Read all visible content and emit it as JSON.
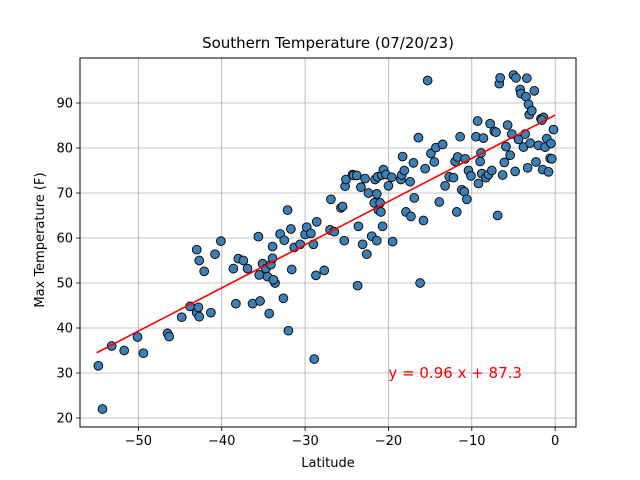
{
  "chart_data": {
    "type": "scatter",
    "title": "Southern Temperature (07/20/23)",
    "xlabel": "Latitude",
    "ylabel": "Max Temperature (F)",
    "xlim": [
      -57,
      2.5
    ],
    "ylim": [
      18,
      100
    ],
    "xticks": [
      -50,
      -40,
      -30,
      -20,
      -10,
      0
    ],
    "yticks": [
      20,
      30,
      40,
      50,
      60,
      70,
      80,
      90
    ],
    "grid": true,
    "colors": {
      "marker_fill": "#3b7fb4",
      "marker_edge": "#000000",
      "regression": "#ff0000"
    },
    "regression": {
      "slope": 0.96,
      "intercept": 87.3,
      "x_start": -55.0,
      "x_end": 0,
      "equation": "y = 0.96 x + 87.3",
      "label_x": -20,
      "label_y": 30
    },
    "points": [
      [
        -54.8,
        31.6
      ],
      [
        -54.3,
        22.0
      ],
      [
        -53.2,
        36.0
      ],
      [
        -51.7,
        35.0
      ],
      [
        -50.1,
        38.0
      ],
      [
        -49.4,
        34.4
      ],
      [
        -46.5,
        38.8
      ],
      [
        -46.3,
        38.1
      ],
      [
        -44.8,
        42.4
      ],
      [
        -43.8,
        44.8
      ],
      [
        -43.0,
        43.4
      ],
      [
        -42.7,
        42.5
      ],
      [
        -42.7,
        55.0
      ],
      [
        -43.0,
        57.4
      ],
      [
        -42.8,
        44.6
      ],
      [
        -42.1,
        52.6
      ],
      [
        -41.3,
        43.4
      ],
      [
        -40.8,
        56.4
      ],
      [
        -40.1,
        59.3
      ],
      [
        -38.6,
        53.2
      ],
      [
        -38.3,
        45.4
      ],
      [
        -38.0,
        55.4
      ],
      [
        -37.4,
        55.0
      ],
      [
        -36.9,
        53.2
      ],
      [
        -36.3,
        45.4
      ],
      [
        -35.6,
        60.3
      ],
      [
        -35.5,
        51.8
      ],
      [
        -35.4,
        46.0
      ],
      [
        -35.1,
        54.3
      ],
      [
        -34.7,
        53.2
      ],
      [
        -34.5,
        51.4
      ],
      [
        -34.3,
        43.2
      ],
      [
        -34.1,
        54.1
      ],
      [
        -33.9,
        55.5
      ],
      [
        -33.9,
        58.1
      ],
      [
        -33.6,
        50.0
      ],
      [
        -33.8,
        50.7
      ],
      [
        -33.0,
        60.9
      ],
      [
        -32.6,
        46.6
      ],
      [
        -32.5,
        59.5
      ],
      [
        -32.1,
        66.2
      ],
      [
        -32.0,
        39.4
      ],
      [
        -31.7,
        62.0
      ],
      [
        -31.6,
        53.0
      ],
      [
        -31.3,
        57.9
      ],
      [
        -30.6,
        58.6
      ],
      [
        -30.0,
        60.8
      ],
      [
        -29.8,
        62.4
      ],
      [
        -29.3,
        61.0
      ],
      [
        -29.0,
        58.6
      ],
      [
        -28.9,
        33.1
      ],
      [
        -28.7,
        51.7
      ],
      [
        -28.6,
        63.6
      ],
      [
        -27.7,
        52.8
      ],
      [
        -27.0,
        61.8
      ],
      [
        -26.9,
        68.6
      ],
      [
        -26.5,
        61.4
      ],
      [
        -25.7,
        66.7
      ],
      [
        -25.5,
        67.0
      ],
      [
        -25.3,
        59.4
      ],
      [
        -25.2,
        71.5
      ],
      [
        -25.1,
        73.0
      ],
      [
        -24.3,
        74.1
      ],
      [
        -24.2,
        73.9
      ],
      [
        -23.8,
        73.9
      ],
      [
        -23.7,
        49.4
      ],
      [
        -23.6,
        62.6
      ],
      [
        -23.3,
        71.3
      ],
      [
        -23.1,
        58.6
      ],
      [
        -22.8,
        73.2
      ],
      [
        -22.6,
        56.4
      ],
      [
        -22.4,
        70.0
      ],
      [
        -22.0,
        60.4
      ],
      [
        -21.7,
        67.8
      ],
      [
        -21.6,
        73.0
      ],
      [
        -21.4,
        69.8
      ],
      [
        -21.3,
        73.6
      ],
      [
        -21.4,
        59.4
      ],
      [
        -21.2,
        66.2
      ],
      [
        -21.0,
        67.8
      ],
      [
        -20.9,
        65.8
      ],
      [
        -20.8,
        74.0
      ],
      [
        -20.7,
        62.6
      ],
      [
        -20.6,
        75.2
      ],
      [
        -20.3,
        74.1
      ],
      [
        -20.0,
        71.6
      ],
      [
        -19.6,
        73.5
      ],
      [
        -19.5,
        59.2
      ],
      [
        -18.5,
        73.0
      ],
      [
        -18.4,
        74.0
      ],
      [
        -18.3,
        78.1
      ],
      [
        -18.1,
        75.0
      ],
      [
        -17.9,
        65.8
      ],
      [
        -17.4,
        72.5
      ],
      [
        -17.3,
        64.8
      ],
      [
        -17.0,
        76.7
      ],
      [
        -16.9,
        68.9
      ],
      [
        -16.4,
        82.3
      ],
      [
        -16.2,
        50.0
      ],
      [
        -15.8,
        63.9
      ],
      [
        -15.6,
        75.4
      ],
      [
        -15.3,
        95.0
      ],
      [
        -14.9,
        78.8
      ],
      [
        -14.5,
        76.9
      ],
      [
        -14.3,
        80.1
      ],
      [
        -13.9,
        68.0
      ],
      [
        -13.5,
        80.8
      ],
      [
        -13.2,
        71.6
      ],
      [
        -12.7,
        73.6
      ],
      [
        -12.2,
        73.4
      ],
      [
        -12.0,
        77.0
      ],
      [
        -11.8,
        65.8
      ],
      [
        -11.7,
        78.0
      ],
      [
        -11.4,
        82.5
      ],
      [
        -11.2,
        70.7
      ],
      [
        -10.9,
        70.3
      ],
      [
        -10.8,
        77.6
      ],
      [
        -10.6,
        68.6
      ],
      [
        -10.4,
        75.0
      ],
      [
        -10.1,
        73.8
      ],
      [
        -9.5,
        82.5
      ],
      [
        -9.3,
        86.0
      ],
      [
        -9.2,
        72.1
      ],
      [
        -9.0,
        77.0
      ],
      [
        -8.9,
        78.9
      ],
      [
        -8.8,
        74.3
      ],
      [
        -8.6,
        82.2
      ],
      [
        -8.3,
        73.4
      ],
      [
        -8.0,
        74.1
      ],
      [
        -7.8,
        85.4
      ],
      [
        -7.6,
        75.0
      ],
      [
        -7.3,
        83.7
      ],
      [
        -7.1,
        83.5
      ],
      [
        -6.9,
        65.0
      ],
      [
        -6.7,
        94.3
      ],
      [
        -6.6,
        95.6
      ],
      [
        -6.3,
        74.0
      ],
      [
        -6.1,
        76.8
      ],
      [
        -5.9,
        80.3
      ],
      [
        -5.7,
        85.1
      ],
      [
        -5.4,
        78.4
      ],
      [
        -5.2,
        83.1
      ],
      [
        -5.0,
        96.2
      ],
      [
        -4.8,
        74.8
      ],
      [
        -4.7,
        95.6
      ],
      [
        -4.4,
        81.9
      ],
      [
        -4.2,
        93.0
      ],
      [
        -4.1,
        92.1
      ],
      [
        -3.8,
        80.2
      ],
      [
        -3.6,
        83.1
      ],
      [
        -3.5,
        91.4
      ],
      [
        -3.4,
        95.5
      ],
      [
        -3.2,
        89.7
      ],
      [
        -3.3,
        75.6
      ],
      [
        -3.1,
        87.4
      ],
      [
        -3.0,
        81.1
      ],
      [
        -2.8,
        88.3
      ],
      [
        -2.5,
        92.7
      ],
      [
        -2.3,
        76.9
      ],
      [
        -2.0,
        80.6
      ],
      [
        -1.7,
        86.5
      ],
      [
        -1.5,
        75.2
      ],
      [
        -1.4,
        86.8
      ],
      [
        -1.2,
        80.2
      ],
      [
        -1.0,
        82.1
      ],
      [
        -0.8,
        74.7
      ],
      [
        -0.6,
        77.7
      ],
      [
        -0.5,
        81.0
      ],
      [
        -0.4,
        77.6
      ],
      [
        -0.2,
        84.1
      ],
      [
        -1.6,
        86.2
      ]
    ]
  }
}
